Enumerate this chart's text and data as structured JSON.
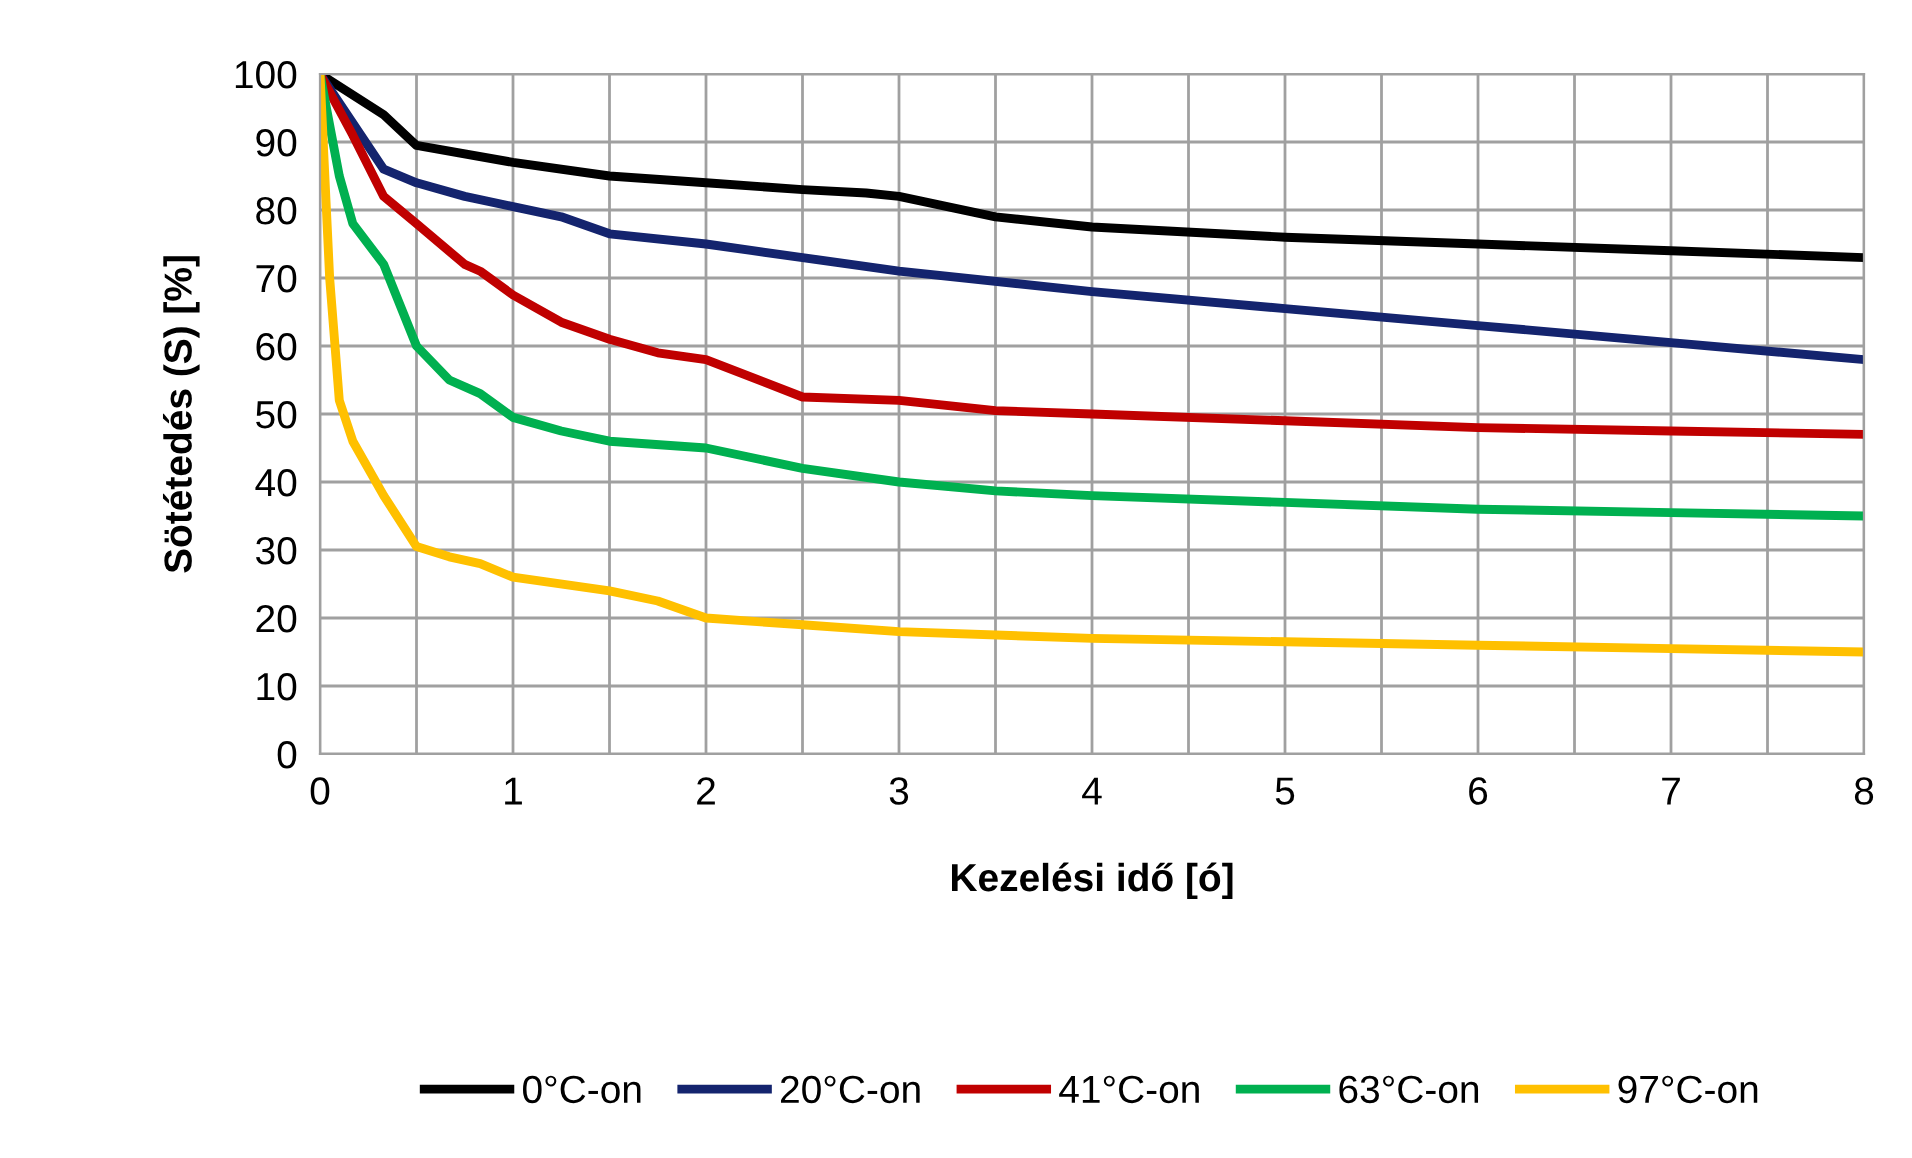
{
  "chart_data": {
    "type": "line",
    "xlabel": "Kezelési idő [ó]",
    "ylabel": "Sötétedés (S) [%]",
    "xlim": [
      0,
      8
    ],
    "ylim": [
      0,
      100
    ],
    "xticks": [
      0,
      {
        "value": 0.5,
        "label": null
      },
      1,
      {
        "value": 1.5,
        "label": null
      },
      2,
      {
        "value": 2.5,
        "label": null
      },
      3,
      {
        "value": 3.5,
        "label": null
      },
      4,
      {
        "value": 4.5,
        "label": null
      },
      5,
      {
        "value": 5.5,
        "label": null
      },
      6,
      {
        "value": 6.5,
        "label": null
      },
      7,
      {
        "value": 7.5,
        "label": null
      },
      8
    ],
    "yticks": [
      0,
      10,
      20,
      30,
      40,
      50,
      60,
      70,
      80,
      90,
      100
    ],
    "grid": true,
    "legend": "bottom",
    "marker": "none",
    "line_style": "solid",
    "series": [
      {
        "name": "0°C-on",
        "color": "#000000",
        "x": [
          0,
          0.33,
          0.5,
          1,
          1.5,
          2,
          2.5,
          2.83,
          3,
          3.5,
          4,
          5,
          6,
          7,
          8
        ],
        "values": [
          100,
          94,
          89.5,
          87,
          85,
          84,
          83,
          82.5,
          82,
          79,
          77.5,
          76,
          75,
          74,
          73
        ]
      },
      {
        "name": "20°C-on",
        "color": "#14246e",
        "x": [
          0,
          0.33,
          0.5,
          0.75,
          1,
          1.25,
          1.5,
          2,
          2.5,
          3,
          4,
          5,
          6,
          7,
          8
        ],
        "values": [
          100,
          86,
          84,
          82,
          80.5,
          79,
          76.5,
          75,
          73,
          71,
          68,
          65.5,
          63,
          60.5,
          58
        ]
      },
      {
        "name": "41°C-on",
        "color": "#c00000",
        "x": [
          0,
          0.17,
          0.33,
          0.5,
          0.75,
          0.83,
          1,
          1.25,
          1.5,
          1.75,
          2,
          2.5,
          3,
          3.5,
          4,
          5,
          6,
          7,
          8
        ],
        "values": [
          100,
          91,
          82,
          78,
          72,
          71,
          67.5,
          63.5,
          61,
          59,
          58,
          52.5,
          52,
          50.5,
          50,
          49,
          48,
          47.5,
          47
        ]
      },
      {
        "name": "63°C-on",
        "color": "#00b050",
        "x": [
          0,
          0.1,
          0.17,
          0.33,
          0.5,
          0.67,
          0.83,
          1,
          1.25,
          1.5,
          2,
          2.5,
          3,
          3.5,
          4,
          5,
          6,
          7,
          8
        ],
        "values": [
          100,
          85,
          78,
          72,
          60,
          55,
          53,
          49.5,
          47.5,
          46,
          45,
          42,
          40,
          38.7,
          38,
          37,
          36,
          35.5,
          35
        ]
      },
      {
        "name": "97°C-on",
        "color": "#ffc000",
        "x": [
          0,
          0.05,
          0.1,
          0.17,
          0.33,
          0.5,
          0.67,
          0.83,
          1,
          1.5,
          1.75,
          2,
          2.5,
          3,
          4,
          5,
          6,
          7,
          8
        ],
        "values": [
          100,
          70,
          52,
          46,
          38,
          30.5,
          29,
          28,
          26,
          24,
          22.5,
          20,
          19,
          18,
          17,
          16.5,
          16,
          15.5,
          15
        ]
      }
    ]
  }
}
